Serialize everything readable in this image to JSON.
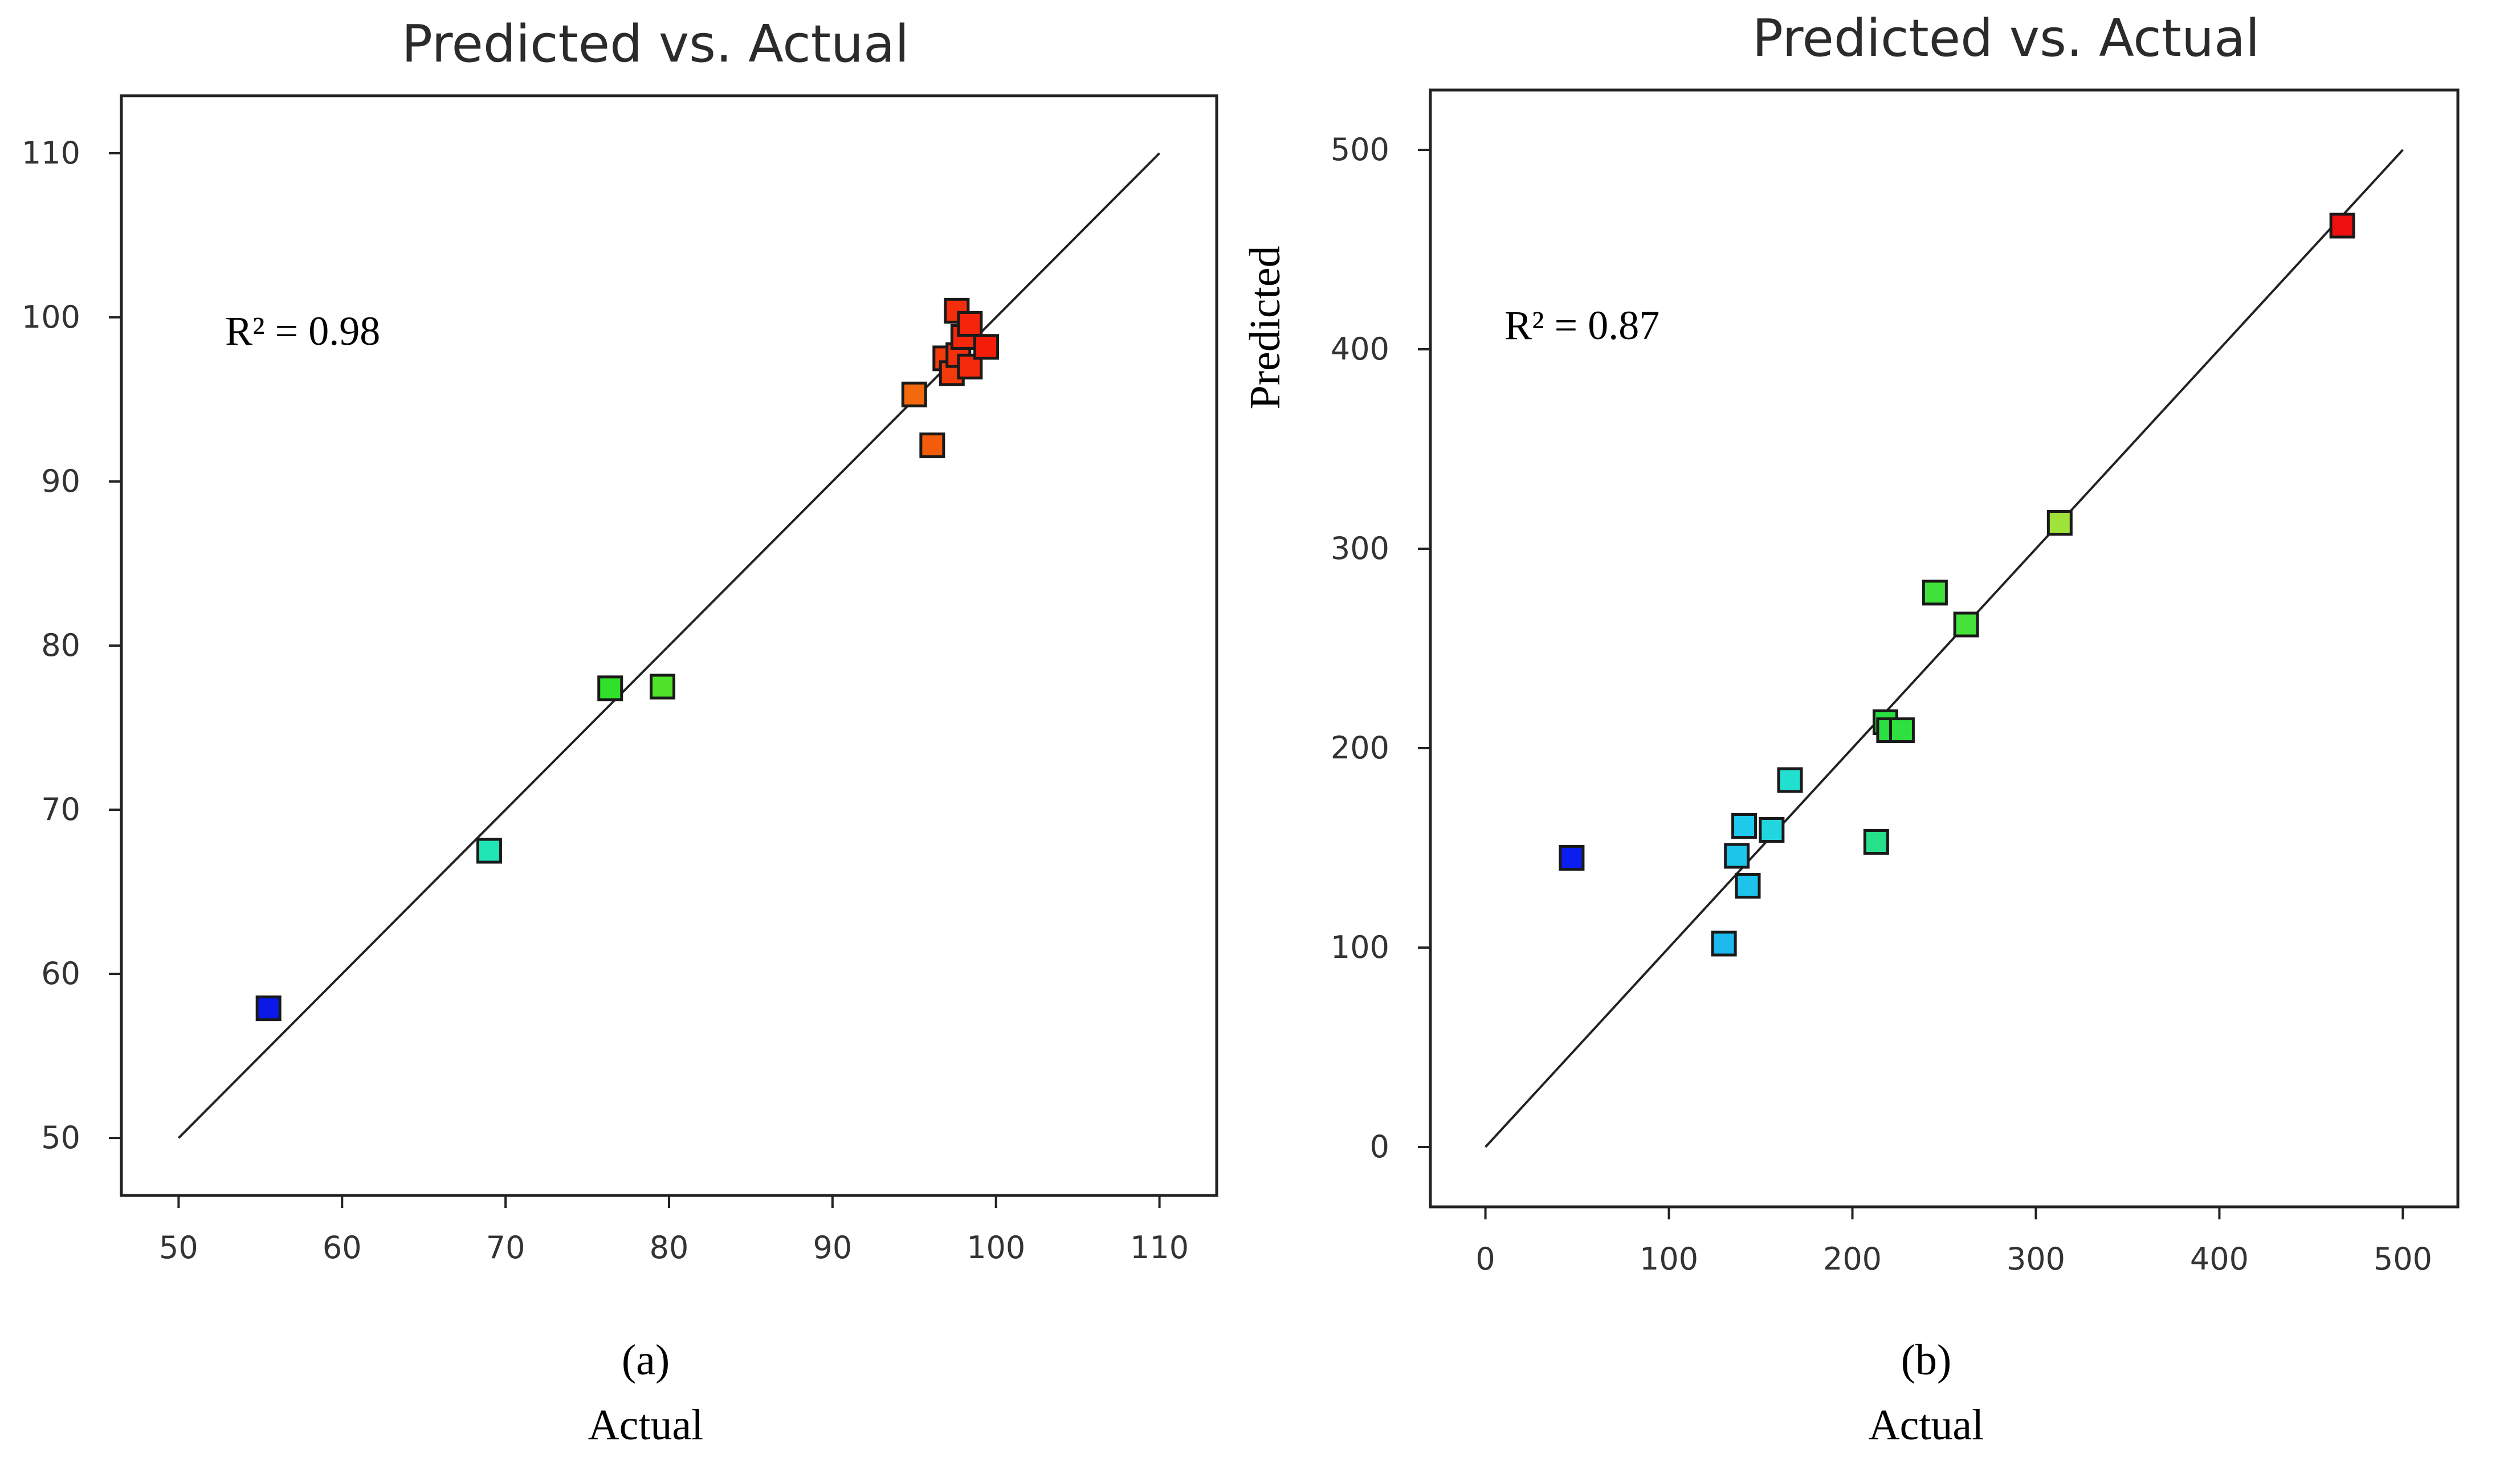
{
  "chart_data": [
    {
      "type": "scatter",
      "panel_label": "(a)",
      "title": "Predicted vs. Actual",
      "xlabel": "Actual",
      "ylabel": "",
      "annotation": "R² = 0.98",
      "r_squared": 0.98,
      "xlim": [
        46.5,
        113.5
      ],
      "ylim": [
        46.5,
        113.5
      ],
      "xticks": [
        50,
        60,
        70,
        80,
        90,
        100,
        110
      ],
      "yticks": [
        50,
        60,
        70,
        80,
        90,
        100,
        110
      ],
      "reference_line": {
        "from": [
          50,
          50
        ],
        "to": [
          110,
          110
        ]
      },
      "points": [
        {
          "x": 55.5,
          "y": 57.9,
          "color": "#0a18e8"
        },
        {
          "x": 69.0,
          "y": 67.5,
          "color": "#20e6b6"
        },
        {
          "x": 76.4,
          "y": 77.4,
          "color": "#30e02a"
        },
        {
          "x": 79.6,
          "y": 77.5,
          "color": "#4ee32a"
        },
        {
          "x": 95.0,
          "y": 95.3,
          "color": "#f26a0c"
        },
        {
          "x": 96.1,
          "y": 92.2,
          "color": "#f25c0a"
        },
        {
          "x": 96.9,
          "y": 97.5,
          "color": "#f43b0c"
        },
        {
          "x": 97.3,
          "y": 96.6,
          "color": "#f33a0b"
        },
        {
          "x": 97.6,
          "y": 100.4,
          "color": "#f42e0a"
        },
        {
          "x": 97.7,
          "y": 97.7,
          "color": "#f3300b"
        },
        {
          "x": 98.0,
          "y": 98.8,
          "color": "#f4280a"
        },
        {
          "x": 98.4,
          "y": 99.6,
          "color": "#f4250a"
        },
        {
          "x": 98.4,
          "y": 97.0,
          "color": "#f42a0a"
        },
        {
          "x": 99.4,
          "y": 98.2,
          "color": "#f41d0a"
        }
      ]
    },
    {
      "type": "scatter",
      "panel_label": "(b)",
      "title": "Predicted vs. Actual",
      "xlabel": "Actual",
      "ylabel": "Predicted",
      "annotation": "R² = 0.87",
      "r_squared": 0.87,
      "xlim": [
        -30,
        530
      ],
      "ylim": [
        -30,
        530
      ],
      "xticks": [
        0,
        100,
        200,
        300,
        400,
        500
      ],
      "yticks": [
        0,
        100,
        200,
        300,
        400,
        500
      ],
      "reference_line": {
        "from": [
          0,
          0
        ],
        "to": [
          500,
          500
        ]
      },
      "points": [
        {
          "x": 47,
          "y": 145,
          "color": "#0b1ef0"
        },
        {
          "x": 130,
          "y": 102,
          "color": "#1cb8ee"
        },
        {
          "x": 137,
          "y": 146,
          "color": "#1fc6ec"
        },
        {
          "x": 141,
          "y": 161,
          "color": "#1fc9ec"
        },
        {
          "x": 143,
          "y": 131,
          "color": "#1ec3ec"
        },
        {
          "x": 156,
          "y": 159,
          "color": "#22d6e0"
        },
        {
          "x": 166,
          "y": 184,
          "color": "#22e0d0"
        },
        {
          "x": 213,
          "y": 153,
          "color": "#27e08a"
        },
        {
          "x": 218,
          "y": 213,
          "color": "#2ae040"
        },
        {
          "x": 220,
          "y": 209,
          "color": "#2ae040"
        },
        {
          "x": 227,
          "y": 209,
          "color": "#2ee040"
        },
        {
          "x": 245,
          "y": 278,
          "color": "#3ee23a"
        },
        {
          "x": 262,
          "y": 262,
          "color": "#44e23a"
        },
        {
          "x": 313,
          "y": 313,
          "color": "#9ee23a"
        },
        {
          "x": 467,
          "y": 462,
          "color": "#ee1010"
        }
      ]
    }
  ]
}
